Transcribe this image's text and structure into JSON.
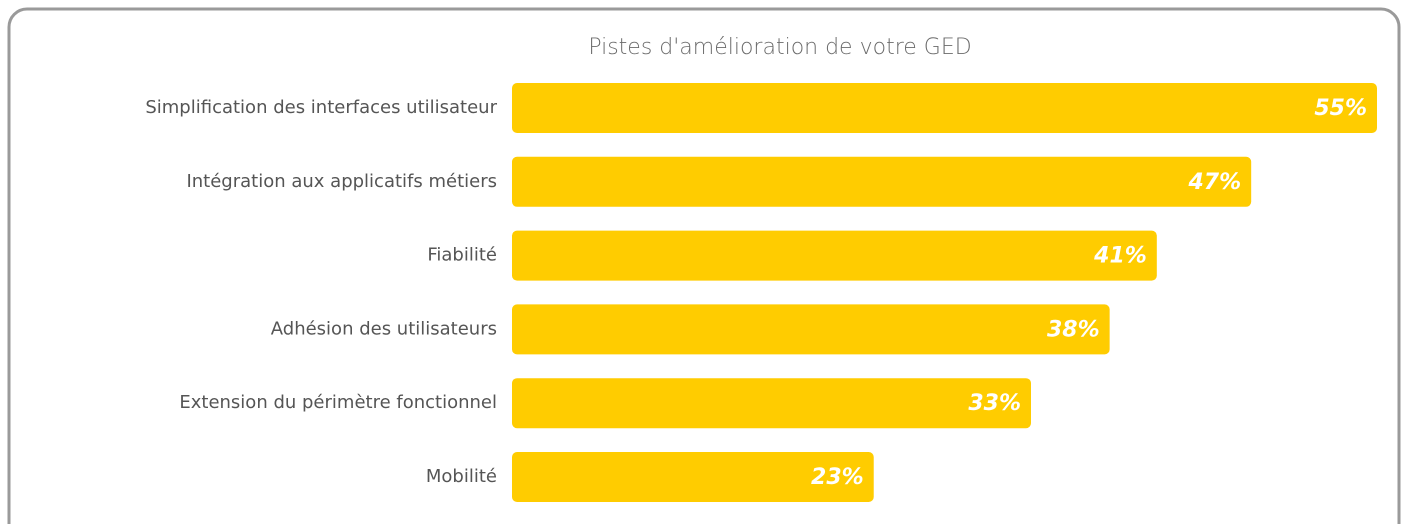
{
  "chart_data": {
    "type": "barh",
    "title": "Pistes d'amélioration de votre GED",
    "categories": [
      "Simplification des interfaces utilisateur",
      "Intégration aux applicatifs métiers",
      "Fiabilité",
      "Adhésion des utilisateurs",
      "Extension du périmètre fonctionnel",
      "Mobilité"
    ],
    "values": [
      55,
      47,
      41,
      38,
      33,
      23
    ],
    "value_labels": [
      "55%",
      "47%",
      "41%",
      "38%",
      "33%",
      "23%"
    ],
    "color": "#ffcc00"
  }
}
